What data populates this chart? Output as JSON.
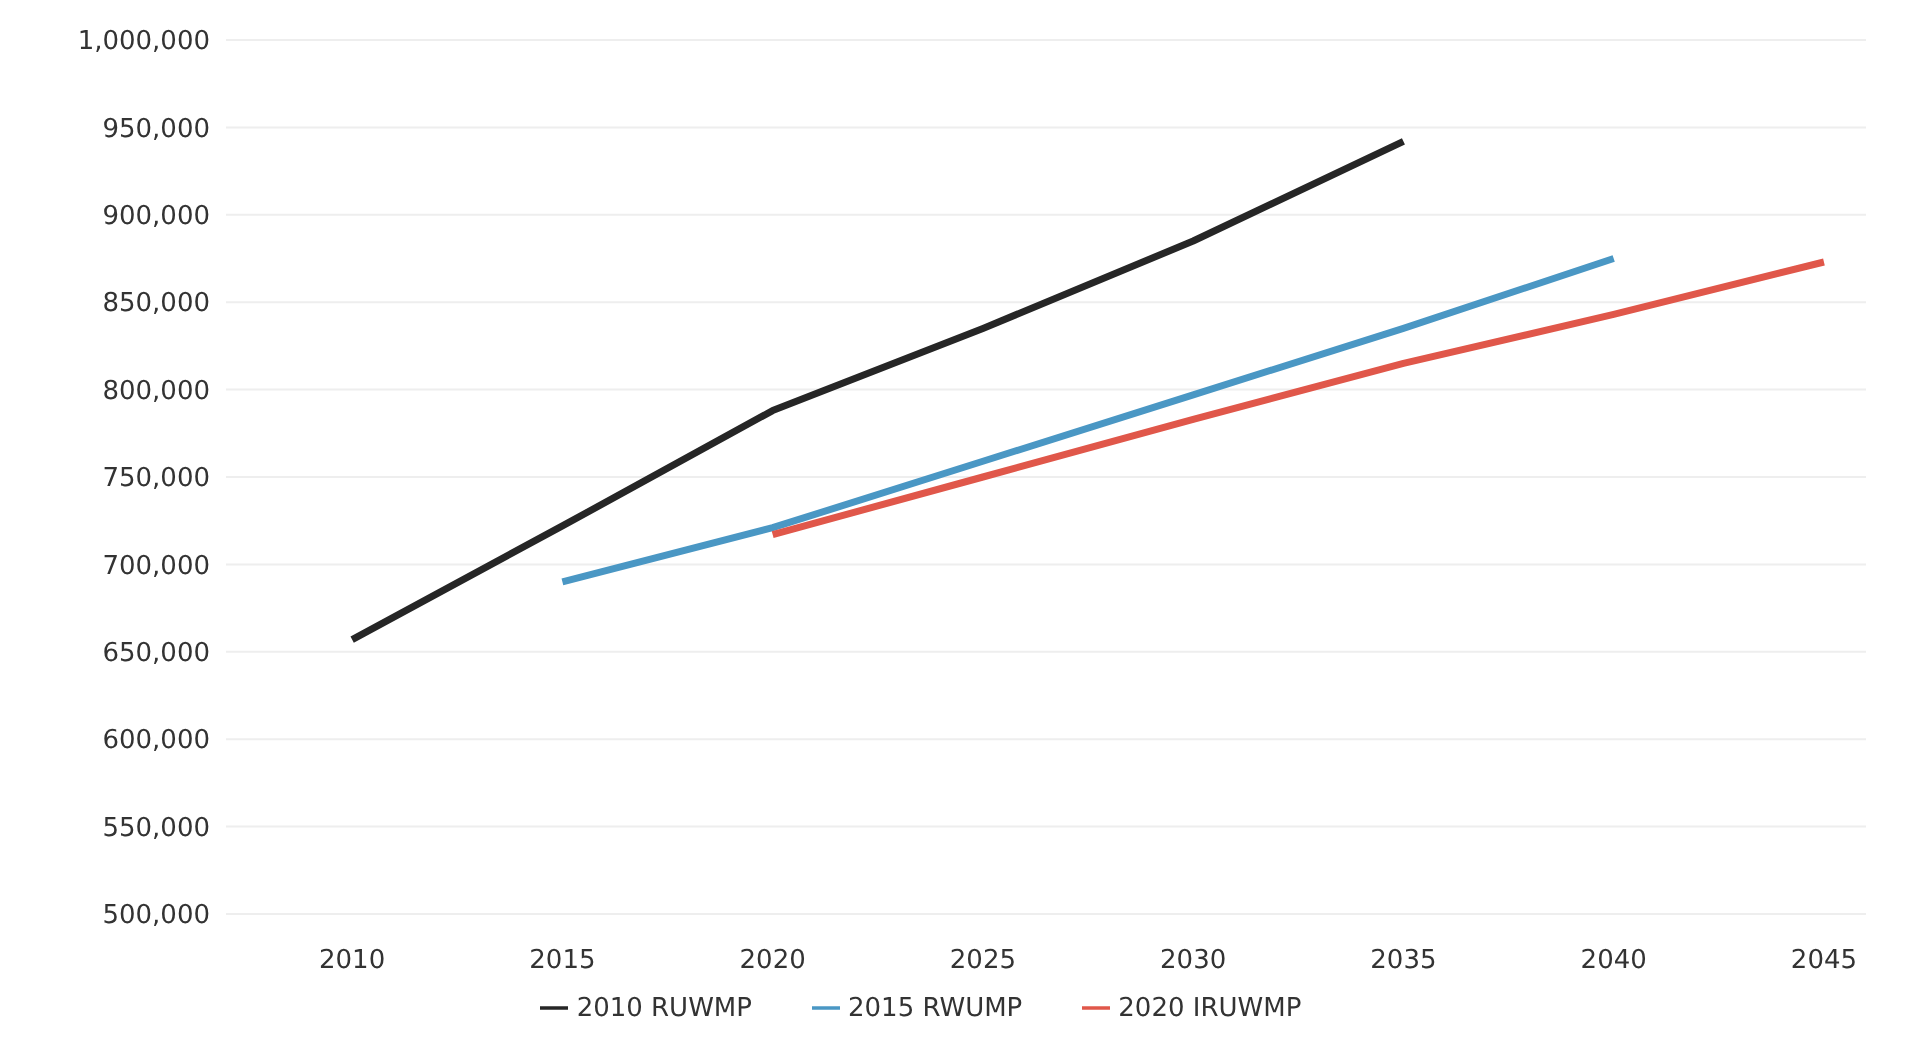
{
  "chart_data": {
    "type": "line",
    "x": [
      2010,
      2015,
      2020,
      2025,
      2030,
      2035,
      2040,
      2045
    ],
    "xlim": [
      2007,
      2046
    ],
    "xticks": [
      2010,
      2015,
      2020,
      2025,
      2030,
      2035,
      2040,
      2045
    ],
    "ylim": [
      500000,
      1000000
    ],
    "yticks": [
      {
        "value": 500000,
        "label": "500,000"
      },
      {
        "value": 550000,
        "label": "550,000"
      },
      {
        "value": 600000,
        "label": "600,000"
      },
      {
        "value": 650000,
        "label": "650,000"
      },
      {
        "value": 700000,
        "label": "700,000"
      },
      {
        "value": 750000,
        "label": "750,000"
      },
      {
        "value": 800000,
        "label": "800,000"
      },
      {
        "value": 850000,
        "label": "850,000"
      },
      {
        "value": 900000,
        "label": "900,000"
      },
      {
        "value": 950000,
        "label": "950,000"
      },
      {
        "value": 1000000,
        "label": "1,000,000"
      }
    ],
    "grid": "y",
    "legend": "bottom",
    "marker": "none",
    "line_style": "solid",
    "series": [
      {
        "name": "2010 RUWMP",
        "color": "#262626",
        "values": [
          657000,
          722000,
          788000,
          835000,
          885000,
          942000,
          null,
          null
        ]
      },
      {
        "name": "2015 RWUMP",
        "color": "#4a97c4",
        "values": [
          null,
          690000,
          721000,
          759000,
          797000,
          835000,
          875000,
          null
        ]
      },
      {
        "name": "2020 IRUWMP",
        "color": "#e0574a",
        "values": [
          null,
          null,
          717000,
          750000,
          783000,
          815000,
          843000,
          873000
        ]
      }
    ]
  }
}
